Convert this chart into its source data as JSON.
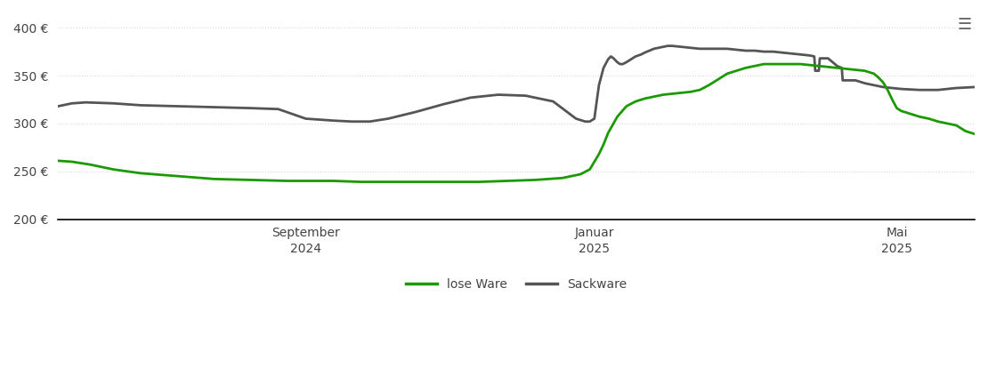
{
  "title": "",
  "background_color": "#ffffff",
  "grid_color": "#d8d8d8",
  "ylim": [
    200,
    415
  ],
  "yticks": [
    200,
    250,
    300,
    350,
    400
  ],
  "x_tick_labels": [
    "September\n2024",
    "Januar\n2025",
    "Mai\n2025"
  ],
  "x_tick_positions": [
    0.27,
    0.585,
    0.915
  ],
  "line_green_color": "#1a9a00",
  "line_gray_color": "#555555",
  "line_width": 2.0,
  "legend_labels": [
    "lose Ware",
    "Sackware"
  ],
  "menu_icon_color": "#666666",
  "lose_ware": {
    "x": [
      0.0,
      0.015,
      0.035,
      0.06,
      0.09,
      0.13,
      0.17,
      0.21,
      0.25,
      0.27,
      0.3,
      0.33,
      0.36,
      0.4,
      0.43,
      0.46,
      0.49,
      0.52,
      0.55,
      0.57,
      0.58,
      0.585,
      0.59,
      0.595,
      0.6,
      0.61,
      0.62,
      0.63,
      0.64,
      0.65,
      0.66,
      0.67,
      0.68,
      0.69,
      0.7,
      0.71,
      0.72,
      0.73,
      0.75,
      0.77,
      0.79,
      0.81,
      0.82,
      0.83,
      0.84,
      0.85,
      0.86,
      0.87,
      0.88,
      0.89,
      0.895,
      0.9,
      0.905,
      0.91,
      0.915,
      0.92,
      0.93,
      0.94,
      0.95,
      0.96,
      0.97,
      0.98,
      0.99,
      1.0
    ],
    "y": [
      261,
      260,
      257,
      252,
      248,
      245,
      242,
      241,
      240,
      240,
      240,
      239,
      239,
      239,
      239,
      239,
      240,
      241,
      243,
      247,
      252,
      260,
      268,
      278,
      290,
      307,
      318,
      323,
      326,
      328,
      330,
      331,
      332,
      333,
      335,
      340,
      346,
      352,
      358,
      362,
      362,
      362,
      361,
      360,
      359,
      358,
      357,
      356,
      355,
      352,
      348,
      343,
      335,
      325,
      316,
      313,
      310,
      307,
      305,
      302,
      300,
      298,
      292,
      289
    ]
  },
  "sackware": {
    "x": [
      0.0,
      0.015,
      0.03,
      0.06,
      0.09,
      0.13,
      0.17,
      0.21,
      0.24,
      0.27,
      0.3,
      0.32,
      0.34,
      0.36,
      0.39,
      0.42,
      0.45,
      0.48,
      0.51,
      0.54,
      0.565,
      0.575,
      0.58,
      0.585,
      0.59,
      0.595,
      0.6,
      0.603,
      0.606,
      0.61,
      0.613,
      0.616,
      0.62,
      0.625,
      0.63,
      0.633,
      0.636,
      0.64,
      0.645,
      0.65,
      0.655,
      0.66,
      0.665,
      0.67,
      0.68,
      0.69,
      0.7,
      0.71,
      0.72,
      0.73,
      0.74,
      0.75,
      0.76,
      0.77,
      0.78,
      0.79,
      0.8,
      0.81,
      0.82,
      0.825,
      0.826,
      0.83,
      0.831,
      0.84,
      0.85,
      0.855,
      0.856,
      0.87,
      0.88,
      0.89,
      0.9,
      0.91,
      0.92,
      0.94,
      0.96,
      0.98,
      1.0
    ],
    "y": [
      318,
      321,
      322,
      321,
      319,
      318,
      317,
      316,
      315,
      305,
      303,
      302,
      302,
      305,
      312,
      320,
      327,
      330,
      329,
      323,
      305,
      302,
      302,
      305,
      340,
      358,
      367,
      370,
      368,
      364,
      362,
      362,
      364,
      367,
      370,
      371,
      372,
      374,
      376,
      378,
      379,
      380,
      381,
      381,
      380,
      379,
      378,
      378,
      378,
      378,
      377,
      376,
      376,
      375,
      375,
      374,
      373,
      372,
      371,
      370,
      355,
      355,
      368,
      368,
      360,
      358,
      345,
      345,
      342,
      340,
      338,
      337,
      336,
      335,
      335,
      337,
      338
    ]
  }
}
